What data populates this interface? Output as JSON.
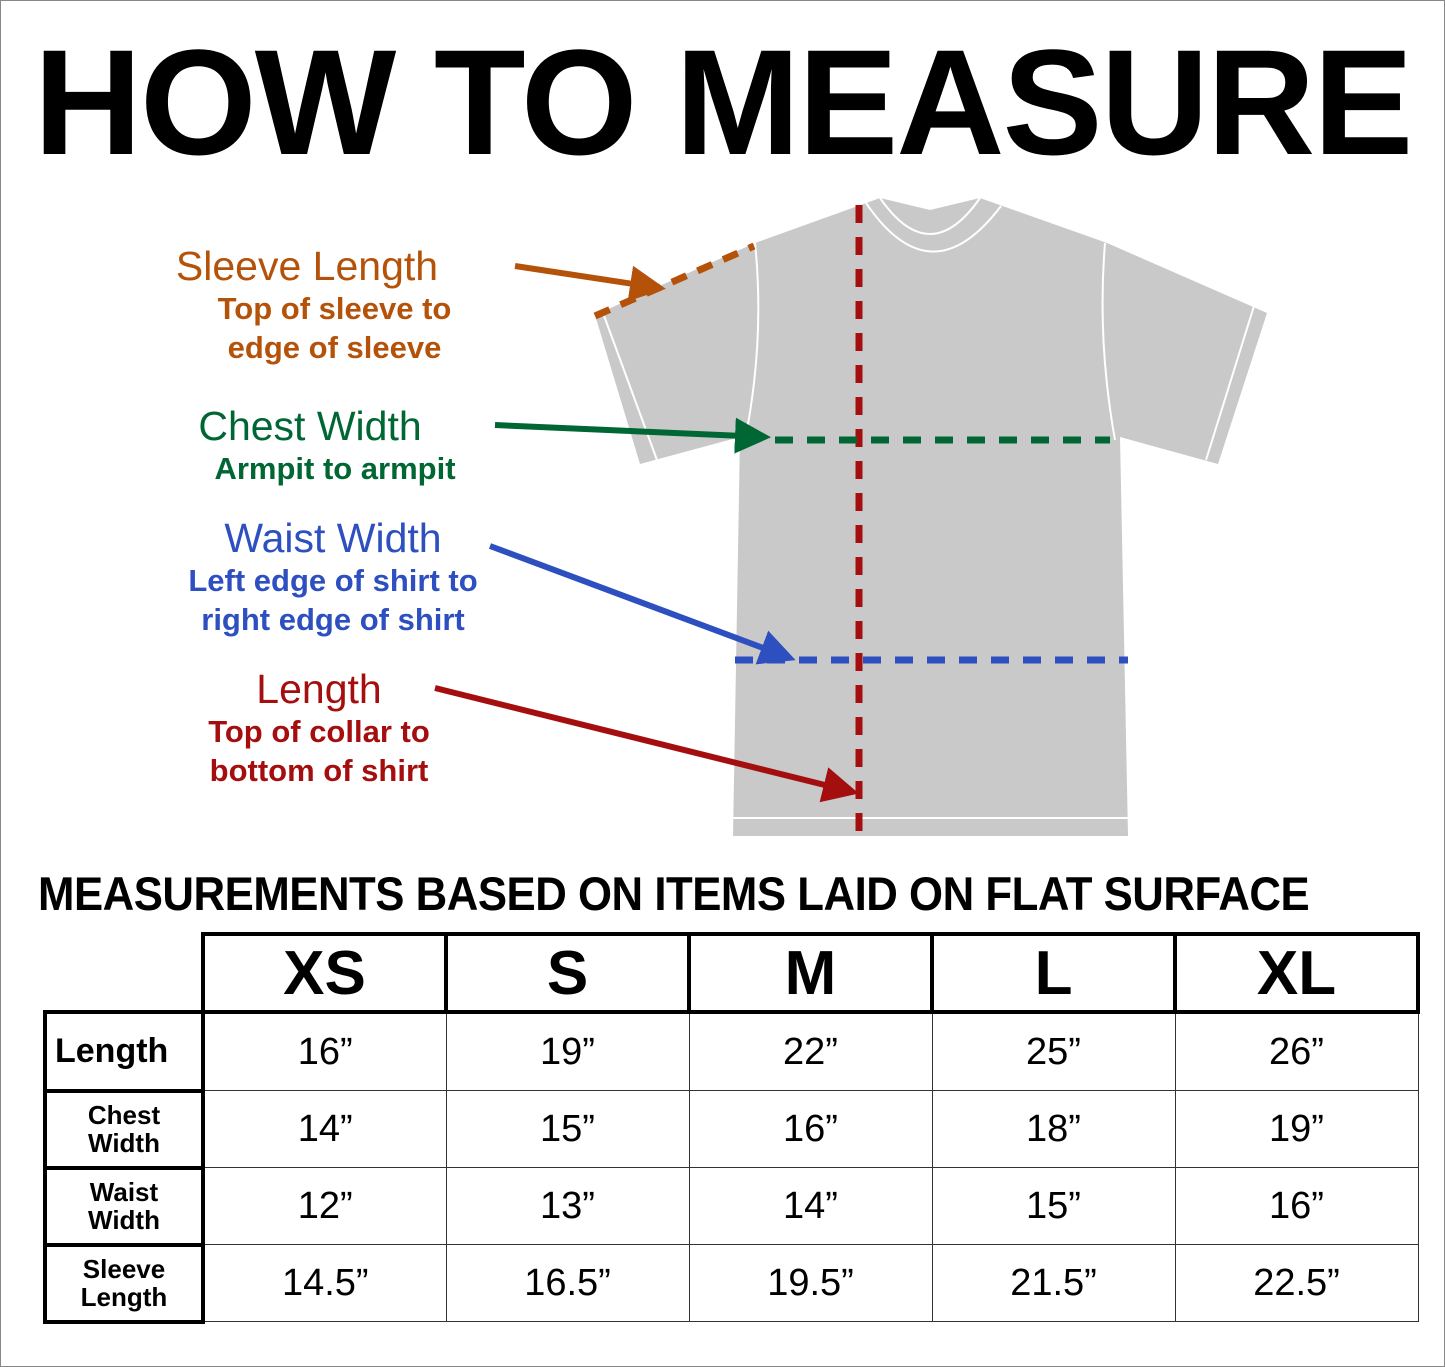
{
  "title": "HOW TO MEASURE",
  "colors": {
    "sleeve": "#b5520a",
    "chest": "#006633",
    "waist": "#2d4fbf",
    "length": "#a50e0e",
    "shirt": "#c8c9c8"
  },
  "labels": {
    "sleeve": {
      "heading": "Sleeve Length",
      "line1": "Top of sleeve to",
      "line2": "edge of sleeve"
    },
    "chest": {
      "heading": "Chest Width",
      "line1": "Armpit to armpit"
    },
    "waist": {
      "heading": "Waist Width",
      "line1": "Left edge of shirt to",
      "line2": "right edge of shirt"
    },
    "length": {
      "heading": "Length",
      "line1": "Top of collar to",
      "line2": "bottom of shirt"
    }
  },
  "subtitle": {
    "part1": "MEASUREMENTS BASED ON ITEMS ",
    "part2": "LAID ON FLAT SURFACE"
  },
  "table": {
    "sizes": [
      "XS",
      "S",
      "M",
      "L",
      "XL"
    ],
    "rows": [
      {
        "label1": "Length",
        "label2": "",
        "values": [
          "16”",
          "19”",
          "22”",
          "25”",
          "26”"
        ]
      },
      {
        "label1": "Chest",
        "label2": "Width",
        "values": [
          "14”",
          "15”",
          "16”",
          "18”",
          "19”"
        ]
      },
      {
        "label1": "Waist",
        "label2": "Width",
        "values": [
          "12”",
          "13”",
          "14”",
          "15”",
          "16”"
        ]
      },
      {
        "label1": "Sleeve",
        "label2": "Length",
        "values": [
          "14.5”",
          "16.5”",
          "19.5”",
          "21.5”",
          "22.5”"
        ]
      }
    ]
  }
}
